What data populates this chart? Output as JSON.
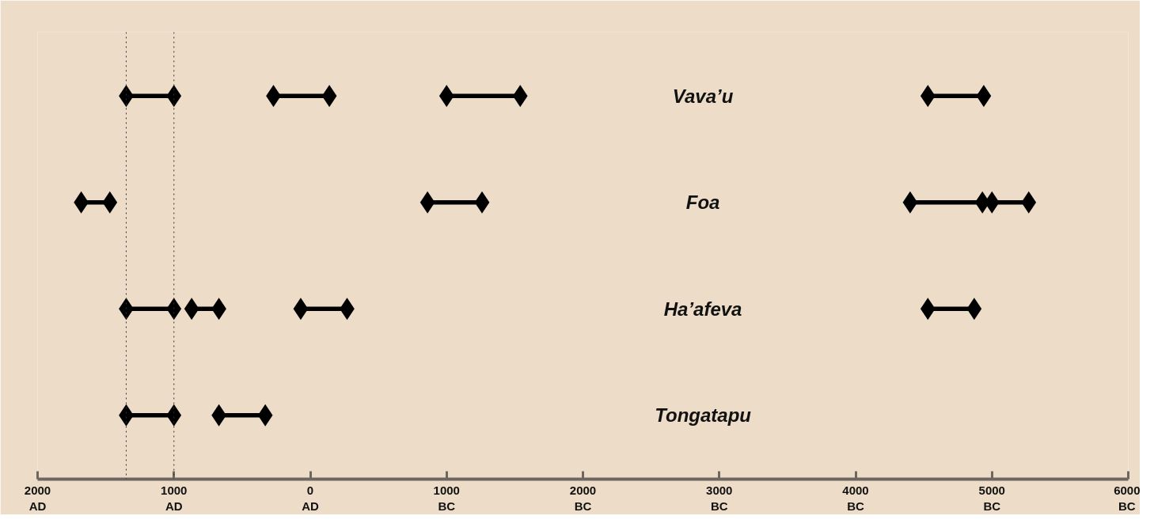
{
  "chart_data": {
    "type": "bar",
    "orientation": "horizontal",
    "categories": [
      "Vava’u",
      "Foa",
      "Ha’afeva",
      "Tongatapu"
    ],
    "series": [
      {
        "color": "#000000",
        "base": [
          -1350,
          -1680,
          -1350,
          -1350
        ],
        "values": [
          350,
          210,
          350,
          350
        ]
      },
      {
        "color": "#000000",
        "base": [
          -270,
          860,
          -870,
          -670
        ],
        "values": [
          410,
          400,
          200,
          340
        ]
      },
      {
        "color": "#000000",
        "base": [
          1000,
          4400,
          -70,
          null
        ],
        "values": [
          540,
          530,
          340,
          null
        ]
      },
      {
        "color": "#000000",
        "base": [
          4530,
          5000,
          4530,
          null
        ],
        "values": [
          410,
          270,
          340,
          null
        ]
      },
      {
        "type": "scatter",
        "color": "#000000",
        "values": [
          -1350,
          -1680,
          -1350,
          -1350
        ]
      },
      {
        "type": "scatter",
        "color": "#000000",
        "values": [
          -1000,
          -1470,
          -1000,
          -1000
        ]
      },
      {
        "type": "scatter",
        "color": "#000000",
        "values": [
          -270,
          860,
          -870,
          -670
        ]
      },
      {
        "type": "scatter",
        "color": "#000000",
        "values": [
          140,
          1260,
          -670,
          -330
        ]
      },
      {
        "type": "scatter",
        "color": "#000000",
        "values": [
          1000,
          4400,
          -70,
          null
        ]
      },
      {
        "type": "scatter",
        "color": "#000000",
        "values": [
          1540,
          4930,
          270,
          null
        ]
      },
      {
        "type": "scatter",
        "color": "#000000",
        "values": [
          4530,
          5000,
          4530,
          null
        ]
      },
      {
        "type": "scatter",
        "color": "#000000",
        "values": [
          4940,
          5270,
          4870,
          null
        ]
      }
    ],
    "marker": "diamond",
    "grid": false,
    "tick_labels": "x",
    "xlim": [
      -2000,
      6000
    ],
    "xticks": [
      {
        "value": -2000,
        "label": "2000\nAD"
      },
      {
        "value": -1000,
        "label": "1000\nAD"
      },
      {
        "value": 0,
        "label": "0\nAD"
      },
      {
        "value": 1000,
        "label": "1000\nBC"
      },
      {
        "value": 2000,
        "label": "2000\nBC"
      },
      {
        "value": 3000,
        "label": "3000\nBC"
      },
      {
        "value": 4000,
        "label": "4000\nBC"
      },
      {
        "value": 5000,
        "label": "5000\nBC"
      },
      {
        "value": 6000,
        "label": "6000\nBC"
      }
    ],
    "ref_lines": [
      {
        "axis": "x",
        "value": -1350,
        "color": "#333333",
        "line_style": "dotted"
      },
      {
        "axis": "x",
        "value": -1000,
        "color": "#333333",
        "line_style": "dotted"
      }
    ]
  }
}
